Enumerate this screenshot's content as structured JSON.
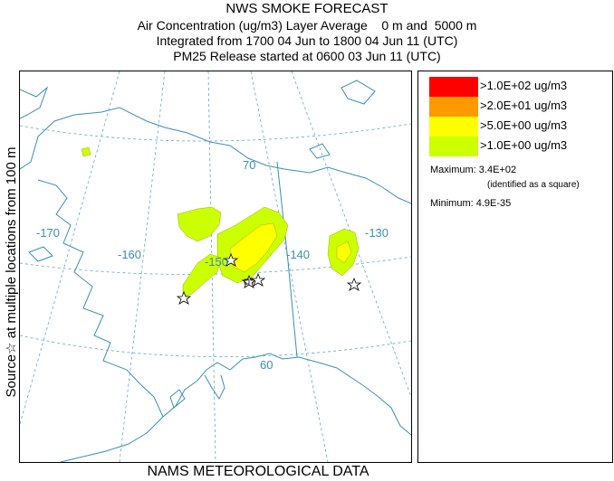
{
  "header": {
    "title": "NWS SMOKE FORECAST",
    "line1": "Air Concentration (ug/m3) Layer Average    0 m and  5000 m",
    "line2": "Integrated from 1700 04 Jun to 1800 04 Jun 11 (UTC)",
    "line3": "PM25 Release started at 0600 03 Jun 11 (UTC)"
  },
  "side_label": "Source☆ at multiple locations  from  100 m",
  "footer": "NAMS METEOROLOGICAL DATA",
  "legend": {
    "items": [
      {
        "label": ">1.0E+02 ug/m3",
        "color": "#ff0000"
      },
      {
        "label": ">2.0E+01 ug/m3",
        "color": "#ff9900"
      },
      {
        "label": ">5.0E+00 ug/m3",
        "color": "#ffff00"
      },
      {
        "label": ">1.0E+00 ug/m3",
        "color": "#ccff00"
      }
    ],
    "maximum": "Maximum: 3.4E+02",
    "maximum_note": "(identified as a square)",
    "minimum": "Minimum: 4.9E-35"
  },
  "map": {
    "graticule_labels": {
      "lon_170": "-170",
      "lon_160": "-160",
      "lon_150": "-150",
      "lon_140": "-140",
      "lon_130": "-130",
      "lat_70": "70",
      "lat_60": "60"
    },
    "colors": {
      "coast": "#3a8fb8",
      "grid": "#5aa8d0",
      "plume_low": "#ccff00",
      "plume_mid": "#ffff00",
      "plume_high": "#ff0000"
    }
  }
}
